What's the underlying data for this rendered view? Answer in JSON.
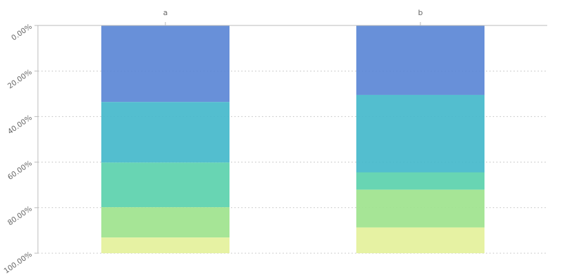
{
  "chart_data": {
    "type": "bar",
    "stacked": "percent",
    "orientation": "vertical",
    "y_axis_inverted": true,
    "x_axis_position": "top",
    "categories": [
      "a",
      "b"
    ],
    "series": [
      {
        "values": [
          33.6,
          30.5
        ],
        "color": "#5b87d6"
      },
      {
        "values": [
          26.6,
          34.0
        ],
        "color": "#44b9cb"
      },
      {
        "values": [
          19.6,
          7.6
        ],
        "color": "#5bd1ad"
      },
      {
        "values": [
          13.3,
          16.6
        ],
        "color": "#9ee38d"
      },
      {
        "values": [
          6.9,
          11.3
        ],
        "color": "#e4f19b"
      }
    ],
    "y_ticks": [
      "0.00%",
      "20.00%",
      "40.00%",
      "60.00%",
      "80.00%",
      "100.00%"
    ],
    "ylim": [
      0,
      100
    ],
    "grid": true,
    "legend": "none"
  }
}
